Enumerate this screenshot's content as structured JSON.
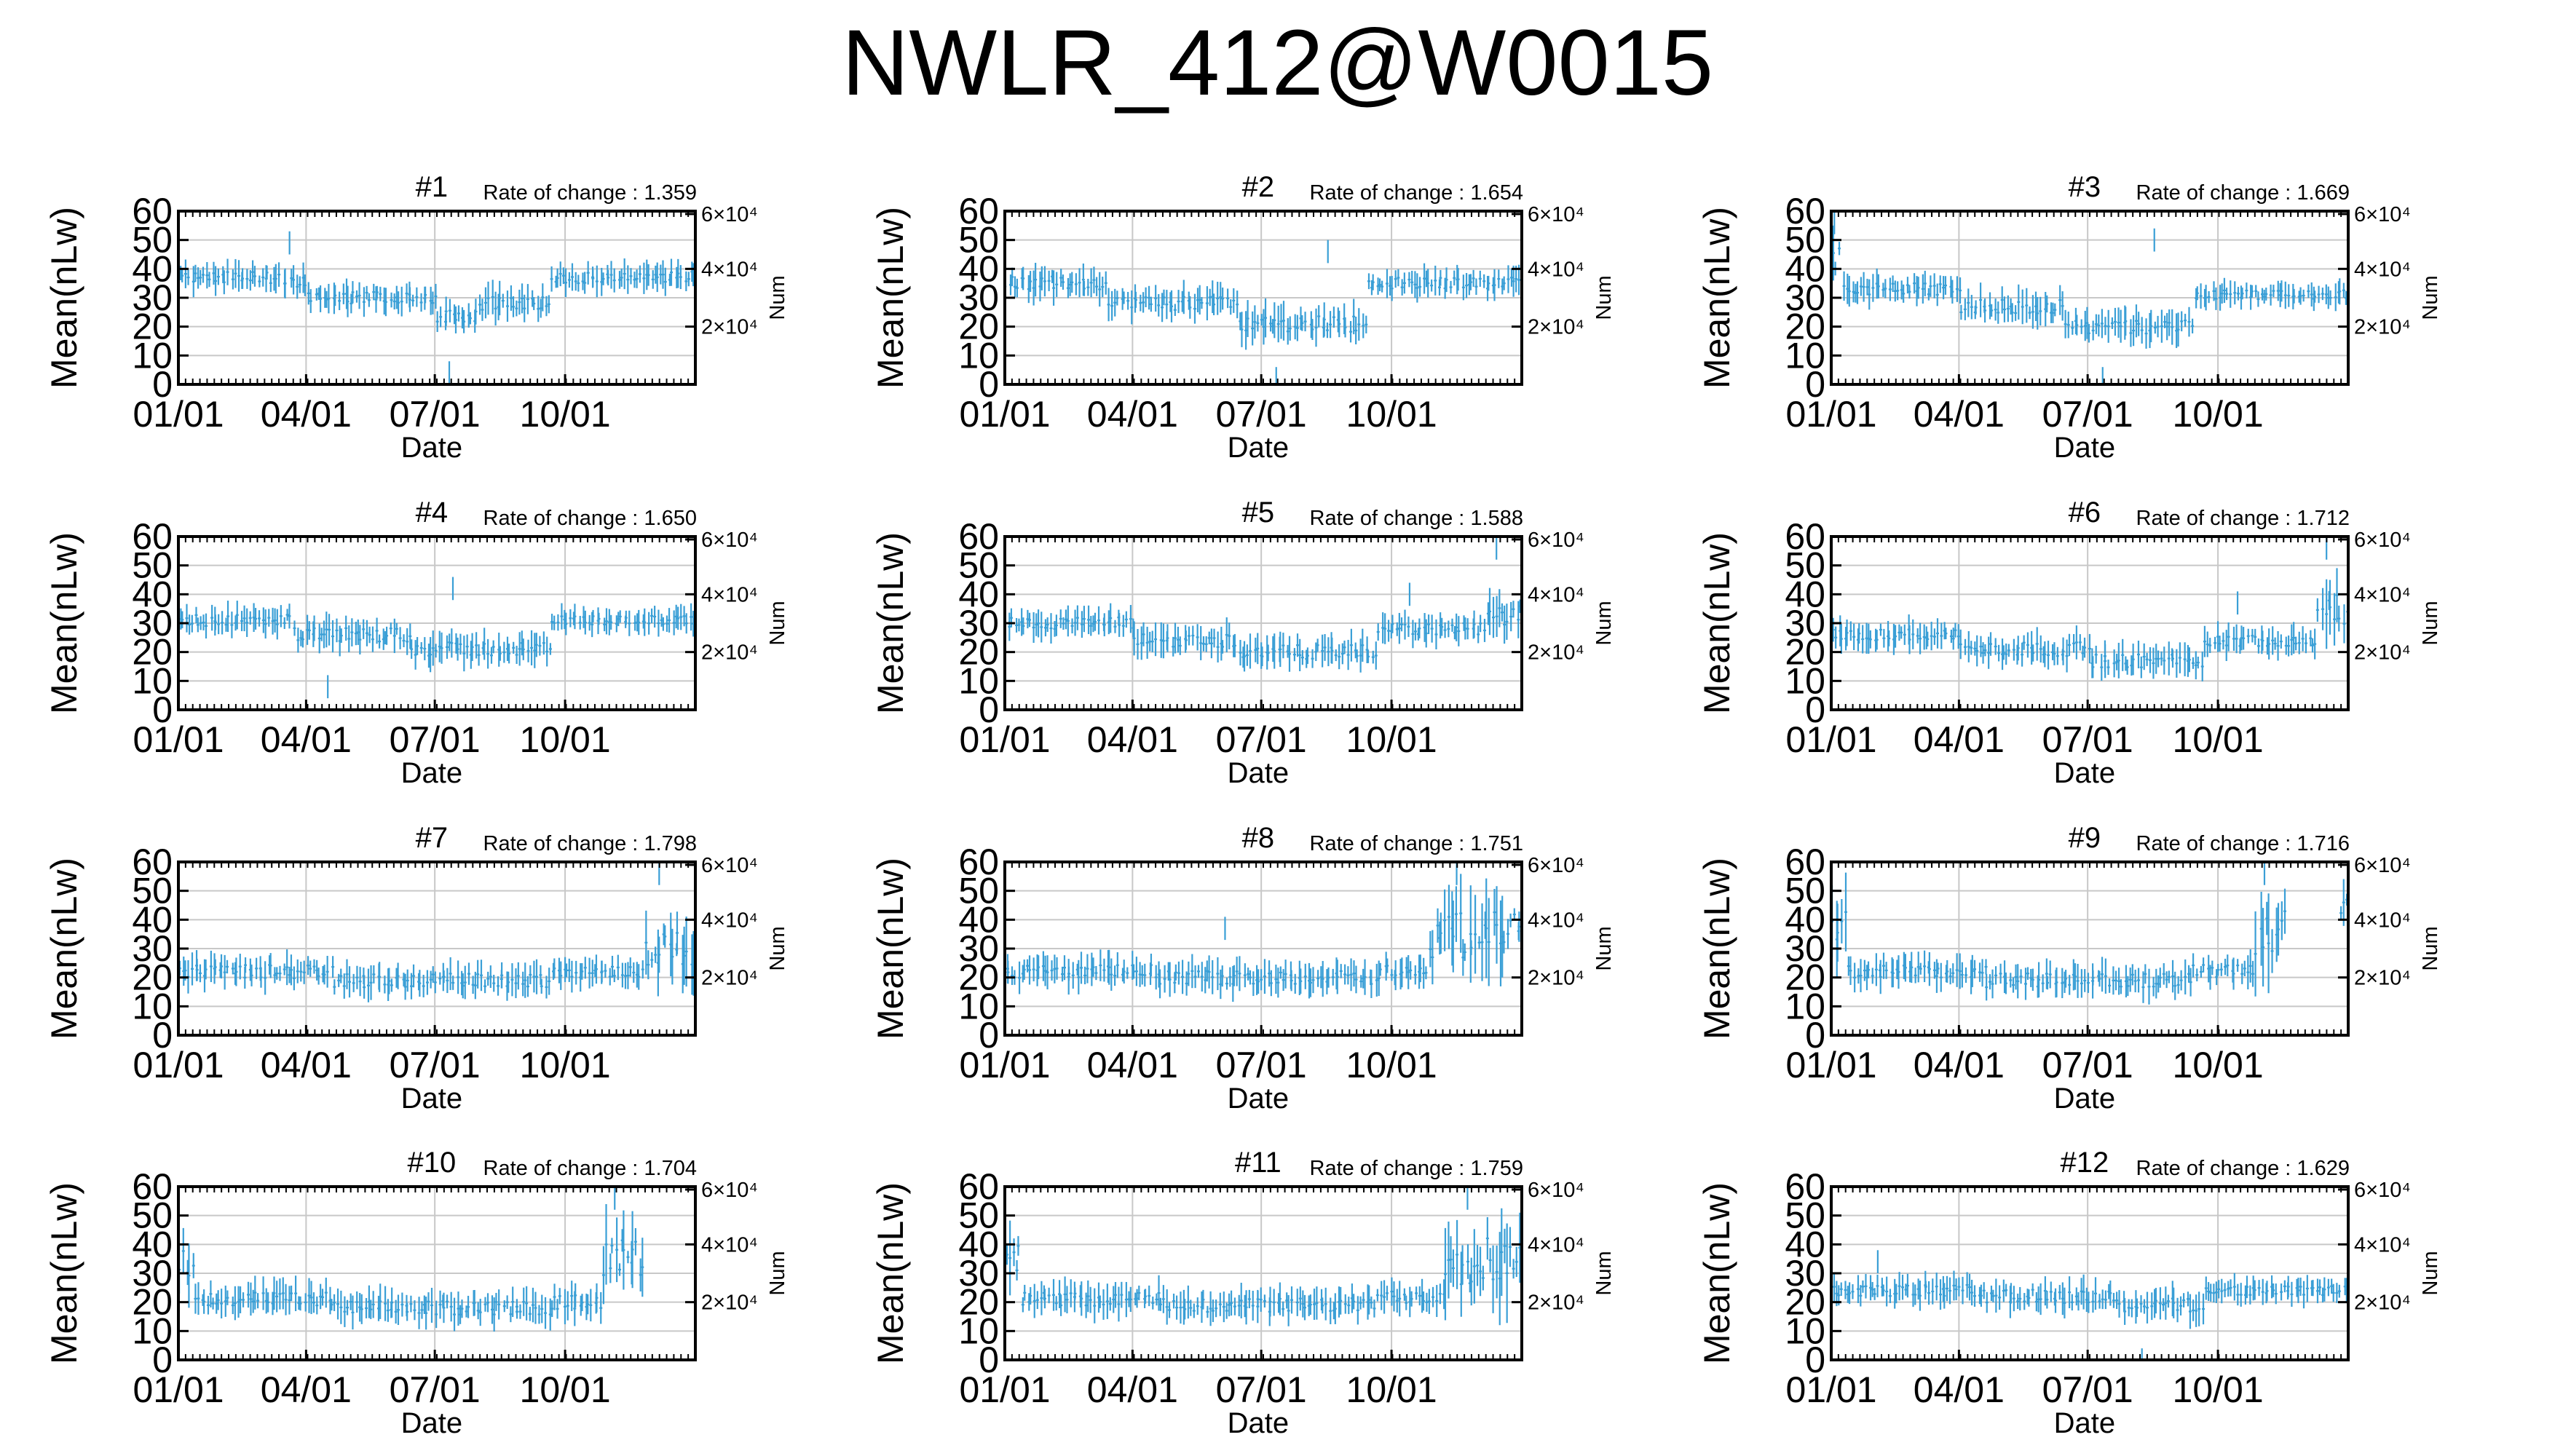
{
  "page_title": "NWLR_412@W0015",
  "chart_data": [
    {
      "type": "errorbar",
      "title": "#1",
      "annotation": "Rate of change : 1.359",
      "xlabel": "Date",
      "ylabel": "Mean(nLw)",
      "y2label": "Num",
      "ylim": [
        0,
        60
      ],
      "yticks": [
        "0",
        "10",
        "20",
        "30",
        "40",
        "50",
        "60"
      ],
      "y2ticks": [
        "2×10⁴",
        "4×10⁴",
        "6×10⁴"
      ],
      "xticks": [
        "01/01",
        "04/01",
        "07/01",
        "10/01"
      ],
      "grid": true,
      "color": "#3a9fd6",
      "segments": [
        {
          "x0": 0,
          "x1": 0.2,
          "mean": 37,
          "spread": 5,
          "outliers": []
        },
        {
          "x0": 0.2,
          "x1": 0.25,
          "mean": 35,
          "spread": 5,
          "outliers": [
            53
          ]
        },
        {
          "x0": 0.25,
          "x1": 0.5,
          "mean": 30,
          "spread": 5,
          "outliers": []
        },
        {
          "x0": 0.5,
          "x1": 0.58,
          "mean": 24,
          "spread": 6,
          "outliers": [
            8
          ]
        },
        {
          "x0": 0.58,
          "x1": 0.72,
          "mean": 28,
          "spread": 6,
          "outliers": []
        },
        {
          "x0": 0.72,
          "x1": 1,
          "mean": 37,
          "spread": 5,
          "outliers": []
        }
      ]
    },
    {
      "type": "errorbar",
      "title": "#2",
      "annotation": "Rate of change : 1.654",
      "xlabel": "Date",
      "ylabel": "Mean(nLw)",
      "y2label": "Num",
      "ylim": [
        0,
        60
      ],
      "yticks": [
        "0",
        "10",
        "20",
        "30",
        "40",
        "50",
        "60"
      ],
      "y2ticks": [
        "2×10⁴",
        "4×10⁴",
        "6×10⁴"
      ],
      "xticks": [
        "01/01",
        "04/01",
        "07/01",
        "10/01"
      ],
      "grid": true,
      "color": "#3a9fd6",
      "segments": [
        {
          "x0": 0,
          "x1": 0.2,
          "mean": 35,
          "spread": 6,
          "outliers": []
        },
        {
          "x0": 0.2,
          "x1": 0.45,
          "mean": 28,
          "spread": 6,
          "outliers": []
        },
        {
          "x0": 0.45,
          "x1": 0.7,
          "mean": 21,
          "spread": 7,
          "outliers": [
            6,
            50
          ]
        },
        {
          "x0": 0.7,
          "x1": 1,
          "mean": 35,
          "spread": 5,
          "outliers": []
        }
      ]
    },
    {
      "type": "errorbar",
      "title": "#3",
      "annotation": "Rate of change : 1.669",
      "xlabel": "Date",
      "ylabel": "Mean(nLw)",
      "y2label": "Num",
      "ylim": [
        0,
        60
      ],
      "yticks": [
        "0",
        "10",
        "20",
        "30",
        "40",
        "50",
        "60"
      ],
      "y2ticks": [
        "2×10⁴",
        "4×10⁴",
        "6×10⁴"
      ],
      "xticks": [
        "01/01",
        "04/01",
        "07/01",
        "10/01"
      ],
      "grid": true,
      "color": "#3a9fd6",
      "segments": [
        {
          "x0": 0,
          "x1": 0.02,
          "mean": 45,
          "spread": 15,
          "outliers": [
            60
          ]
        },
        {
          "x0": 0.02,
          "x1": 0.25,
          "mean": 33,
          "spread": 5,
          "outliers": []
        },
        {
          "x0": 0.25,
          "x1": 0.45,
          "mean": 27,
          "spread": 6,
          "outliers": []
        },
        {
          "x0": 0.45,
          "x1": 0.7,
          "mean": 20,
          "spread": 6,
          "outliers": [
            6,
            54
          ]
        },
        {
          "x0": 0.7,
          "x1": 1,
          "mean": 31,
          "spread": 4,
          "outliers": []
        }
      ]
    },
    {
      "type": "errorbar",
      "title": "#4",
      "annotation": "Rate of change : 1.650",
      "xlabel": "Date",
      "ylabel": "Mean(nLw)",
      "y2label": "Num",
      "ylim": [
        0,
        60
      ],
      "yticks": [
        "0",
        "10",
        "20",
        "30",
        "40",
        "50",
        "60"
      ],
      "y2ticks": [
        "2×10⁴",
        "4×10⁴",
        "6×10⁴"
      ],
      "xticks": [
        "01/01",
        "04/01",
        "07/01",
        "10/01"
      ],
      "grid": true,
      "color": "#3a9fd6",
      "segments": [
        {
          "x0": 0,
          "x1": 0.22,
          "mean": 31,
          "spread": 5,
          "outliers": []
        },
        {
          "x0": 0.22,
          "x1": 0.45,
          "mean": 26,
          "spread": 6,
          "outliers": [
            12
          ]
        },
        {
          "x0": 0.45,
          "x1": 0.72,
          "mean": 21,
          "spread": 6,
          "outliers": [
            46
          ]
        },
        {
          "x0": 0.72,
          "x1": 1,
          "mean": 31,
          "spread": 4,
          "outliers": []
        }
      ]
    },
    {
      "type": "errorbar",
      "title": "#5",
      "annotation": "Rate of change : 1.588",
      "xlabel": "Date",
      "ylabel": "Mean(nLw)",
      "y2label": "Num",
      "ylim": [
        0,
        60
      ],
      "yticks": [
        "0",
        "10",
        "20",
        "30",
        "40",
        "50",
        "60"
      ],
      "y2ticks": [
        "2×10⁴",
        "4×10⁴",
        "6×10⁴"
      ],
      "xticks": [
        "01/01",
        "04/01",
        "07/01",
        "10/01"
      ],
      "grid": true,
      "color": "#3a9fd6",
      "segments": [
        {
          "x0": 0,
          "x1": 0.25,
          "mean": 30,
          "spread": 5,
          "outliers": []
        },
        {
          "x0": 0.25,
          "x1": 0.45,
          "mean": 24,
          "spread": 6,
          "outliers": []
        },
        {
          "x0": 0.45,
          "x1": 0.72,
          "mean": 20,
          "spread": 6,
          "outliers": []
        },
        {
          "x0": 0.72,
          "x1": 0.93,
          "mean": 28,
          "spread": 5,
          "outliers": [
            44
          ]
        },
        {
          "x0": 0.93,
          "x1": 1,
          "mean": 32,
          "spread": 10,
          "outliers": [
            60
          ]
        }
      ]
    },
    {
      "type": "errorbar",
      "title": "#6",
      "annotation": "Rate of change : 1.712",
      "xlabel": "Date",
      "ylabel": "Mean(nLw)",
      "y2label": "Num",
      "ylim": [
        0,
        60
      ],
      "yticks": [
        "0",
        "10",
        "20",
        "30",
        "40",
        "50",
        "60"
      ],
      "y2ticks": [
        "2×10⁴",
        "4×10⁴",
        "6×10⁴"
      ],
      "xticks": [
        "01/01",
        "04/01",
        "07/01",
        "10/01"
      ],
      "grid": true,
      "color": "#3a9fd6",
      "segments": [
        {
          "x0": 0,
          "x1": 0.25,
          "mean": 26,
          "spread": 5,
          "outliers": []
        },
        {
          "x0": 0.25,
          "x1": 0.5,
          "mean": 21,
          "spread": 6,
          "outliers": []
        },
        {
          "x0": 0.5,
          "x1": 0.72,
          "mean": 17,
          "spread": 6,
          "outliers": []
        },
        {
          "x0": 0.72,
          "x1": 0.94,
          "mean": 24,
          "spread": 5,
          "outliers": [
            41
          ]
        },
        {
          "x0": 0.94,
          "x1": 1,
          "mean": 35,
          "spread": 15,
          "outliers": [
            60
          ]
        }
      ]
    },
    {
      "type": "errorbar",
      "title": "#7",
      "annotation": "Rate of change : 1.798",
      "xlabel": "Date",
      "ylabel": "Mean(nLw)",
      "y2label": "Num",
      "ylim": [
        0,
        60
      ],
      "yticks": [
        "0",
        "10",
        "20",
        "30",
        "40",
        "50",
        "60"
      ],
      "y2ticks": [
        "2×10⁴",
        "4×10⁴",
        "6×10⁴"
      ],
      "xticks": [
        "01/01",
        "04/01",
        "07/01",
        "10/01"
      ],
      "grid": true,
      "color": "#3a9fd6",
      "segments": [
        {
          "x0": 0,
          "x1": 0.3,
          "mean": 22,
          "spread": 6,
          "outliers": []
        },
        {
          "x0": 0.3,
          "x1": 0.72,
          "mean": 19,
          "spread": 6,
          "outliers": []
        },
        {
          "x0": 0.72,
          "x1": 0.9,
          "mean": 22,
          "spread": 5,
          "outliers": []
        },
        {
          "x0": 0.9,
          "x1": 1,
          "mean": 30,
          "spread": 15,
          "outliers": [
            60
          ]
        }
      ]
    },
    {
      "type": "errorbar",
      "title": "#8",
      "annotation": "Rate of change : 1.751",
      "xlabel": "Date",
      "ylabel": "Mean(nLw)",
      "y2label": "Num",
      "ylim": [
        0,
        60
      ],
      "yticks": [
        "0",
        "10",
        "20",
        "30",
        "40",
        "50",
        "60"
      ],
      "y2ticks": [
        "2×10⁴",
        "4×10⁴",
        "6×10⁴"
      ],
      "xticks": [
        "01/01",
        "04/01",
        "07/01",
        "10/01"
      ],
      "grid": true,
      "color": "#3a9fd6",
      "segments": [
        {
          "x0": 0,
          "x1": 0.3,
          "mean": 22,
          "spread": 6,
          "outliers": []
        },
        {
          "x0": 0.3,
          "x1": 0.72,
          "mean": 20,
          "spread": 6,
          "outliers": [
            41
          ]
        },
        {
          "x0": 0.72,
          "x1": 0.82,
          "mean": 22,
          "spread": 6,
          "outliers": []
        },
        {
          "x0": 0.82,
          "x1": 1,
          "mean": 35,
          "spread": 22,
          "outliers": [
            60
          ]
        }
      ]
    },
    {
      "type": "errorbar",
      "title": "#9",
      "annotation": "Rate of change : 1.716",
      "xlabel": "Date",
      "ylabel": "Mean(nLw)",
      "y2label": "Num",
      "ylim": [
        0,
        60
      ],
      "yticks": [
        "0",
        "10",
        "20",
        "30",
        "40",
        "50",
        "60"
      ],
      "y2ticks": [
        "2×10⁴",
        "4×10⁴",
        "6×10⁴"
      ],
      "xticks": [
        "01/01",
        "04/01",
        "07/01",
        "10/01"
      ],
      "grid": true,
      "color": "#3a9fd6",
      "segments": [
        {
          "x0": 0,
          "x1": 0.03,
          "mean": 40,
          "spread": 18,
          "outliers": []
        },
        {
          "x0": 0.03,
          "x1": 0.3,
          "mean": 22,
          "spread": 6,
          "outliers": []
        },
        {
          "x0": 0.3,
          "x1": 0.7,
          "mean": 19,
          "spread": 6,
          "outliers": []
        },
        {
          "x0": 0.7,
          "x1": 0.82,
          "mean": 22,
          "spread": 6,
          "outliers": []
        },
        {
          "x0": 0.82,
          "x1": 0.88,
          "mean": 35,
          "spread": 22,
          "outliers": [
            60
          ]
        },
        {
          "x0": 0.98,
          "x1": 1,
          "mean": 45,
          "spread": 12,
          "outliers": []
        }
      ]
    },
    {
      "type": "errorbar",
      "title": "#10",
      "annotation": "Rate of change : 1.704",
      "xlabel": "Date",
      "ylabel": "Mean(nLw)",
      "y2label": "Num",
      "ylim": [
        0,
        60
      ],
      "yticks": [
        "0",
        "10",
        "20",
        "30",
        "40",
        "50",
        "60"
      ],
      "y2ticks": [
        "2×10⁴",
        "4×10⁴",
        "6×10⁴"
      ],
      "xticks": [
        "01/01",
        "04/01",
        "07/01",
        "10/01"
      ],
      "grid": true,
      "color": "#3a9fd6",
      "segments": [
        {
          "x0": 0,
          "x1": 0.03,
          "mean": 35,
          "spread": 15,
          "outliers": []
        },
        {
          "x0": 0.03,
          "x1": 0.3,
          "mean": 21,
          "spread": 6,
          "outliers": []
        },
        {
          "x0": 0.3,
          "x1": 0.72,
          "mean": 18,
          "spread": 6,
          "outliers": []
        },
        {
          "x0": 0.72,
          "x1": 0.82,
          "mean": 20,
          "spread": 6,
          "outliers": []
        },
        {
          "x0": 0.82,
          "x1": 0.9,
          "mean": 38,
          "spread": 22,
          "outliers": [
            60
          ]
        }
      ]
    },
    {
      "type": "errorbar",
      "title": "#11",
      "annotation": "Rate of change : 1.759",
      "xlabel": "Date",
      "ylabel": "Mean(nLw)",
      "y2label": "Num",
      "ylim": [
        0,
        60
      ],
      "yticks": [
        "0",
        "10",
        "20",
        "30",
        "40",
        "50",
        "60"
      ],
      "y2ticks": [
        "2×10⁴",
        "4×10⁴",
        "6×10⁴"
      ],
      "xticks": [
        "01/01",
        "04/01",
        "07/01",
        "10/01"
      ],
      "grid": true,
      "color": "#3a9fd6",
      "segments": [
        {
          "x0": 0,
          "x1": 0.03,
          "mean": 38,
          "spread": 18,
          "outliers": []
        },
        {
          "x0": 0.03,
          "x1": 0.3,
          "mean": 21,
          "spread": 6,
          "outliers": []
        },
        {
          "x0": 0.3,
          "x1": 0.72,
          "mean": 19,
          "spread": 6,
          "outliers": []
        },
        {
          "x0": 0.72,
          "x1": 0.85,
          "mean": 22,
          "spread": 6,
          "outliers": []
        },
        {
          "x0": 0.85,
          "x1": 1,
          "mean": 35,
          "spread": 22,
          "outliers": [
            60
          ]
        }
      ]
    },
    {
      "type": "errorbar",
      "title": "#12",
      "annotation": "Rate of change : 1.629",
      "xlabel": "Date",
      "ylabel": "Mean(nLw)",
      "y2label": "Num",
      "ylim": [
        0,
        60
      ],
      "yticks": [
        "0",
        "10",
        "20",
        "30",
        "40",
        "50",
        "60"
      ],
      "y2ticks": [
        "2×10⁴",
        "4×10⁴",
        "6×10⁴"
      ],
      "xticks": [
        "01/01",
        "04/01",
        "07/01",
        "10/01"
      ],
      "grid": true,
      "color": "#3a9fd6",
      "segments": [
        {
          "x0": 0,
          "x1": 0.3,
          "mean": 24,
          "spread": 5,
          "outliers": [
            38
          ]
        },
        {
          "x0": 0.3,
          "x1": 0.55,
          "mean": 22,
          "spread": 6,
          "outliers": []
        },
        {
          "x0": 0.55,
          "x1": 0.72,
          "mean": 19,
          "spread": 6,
          "outliers": [
            4
          ]
        },
        {
          "x0": 0.72,
          "x1": 1,
          "mean": 24,
          "spread": 4,
          "outliers": []
        }
      ]
    }
  ]
}
